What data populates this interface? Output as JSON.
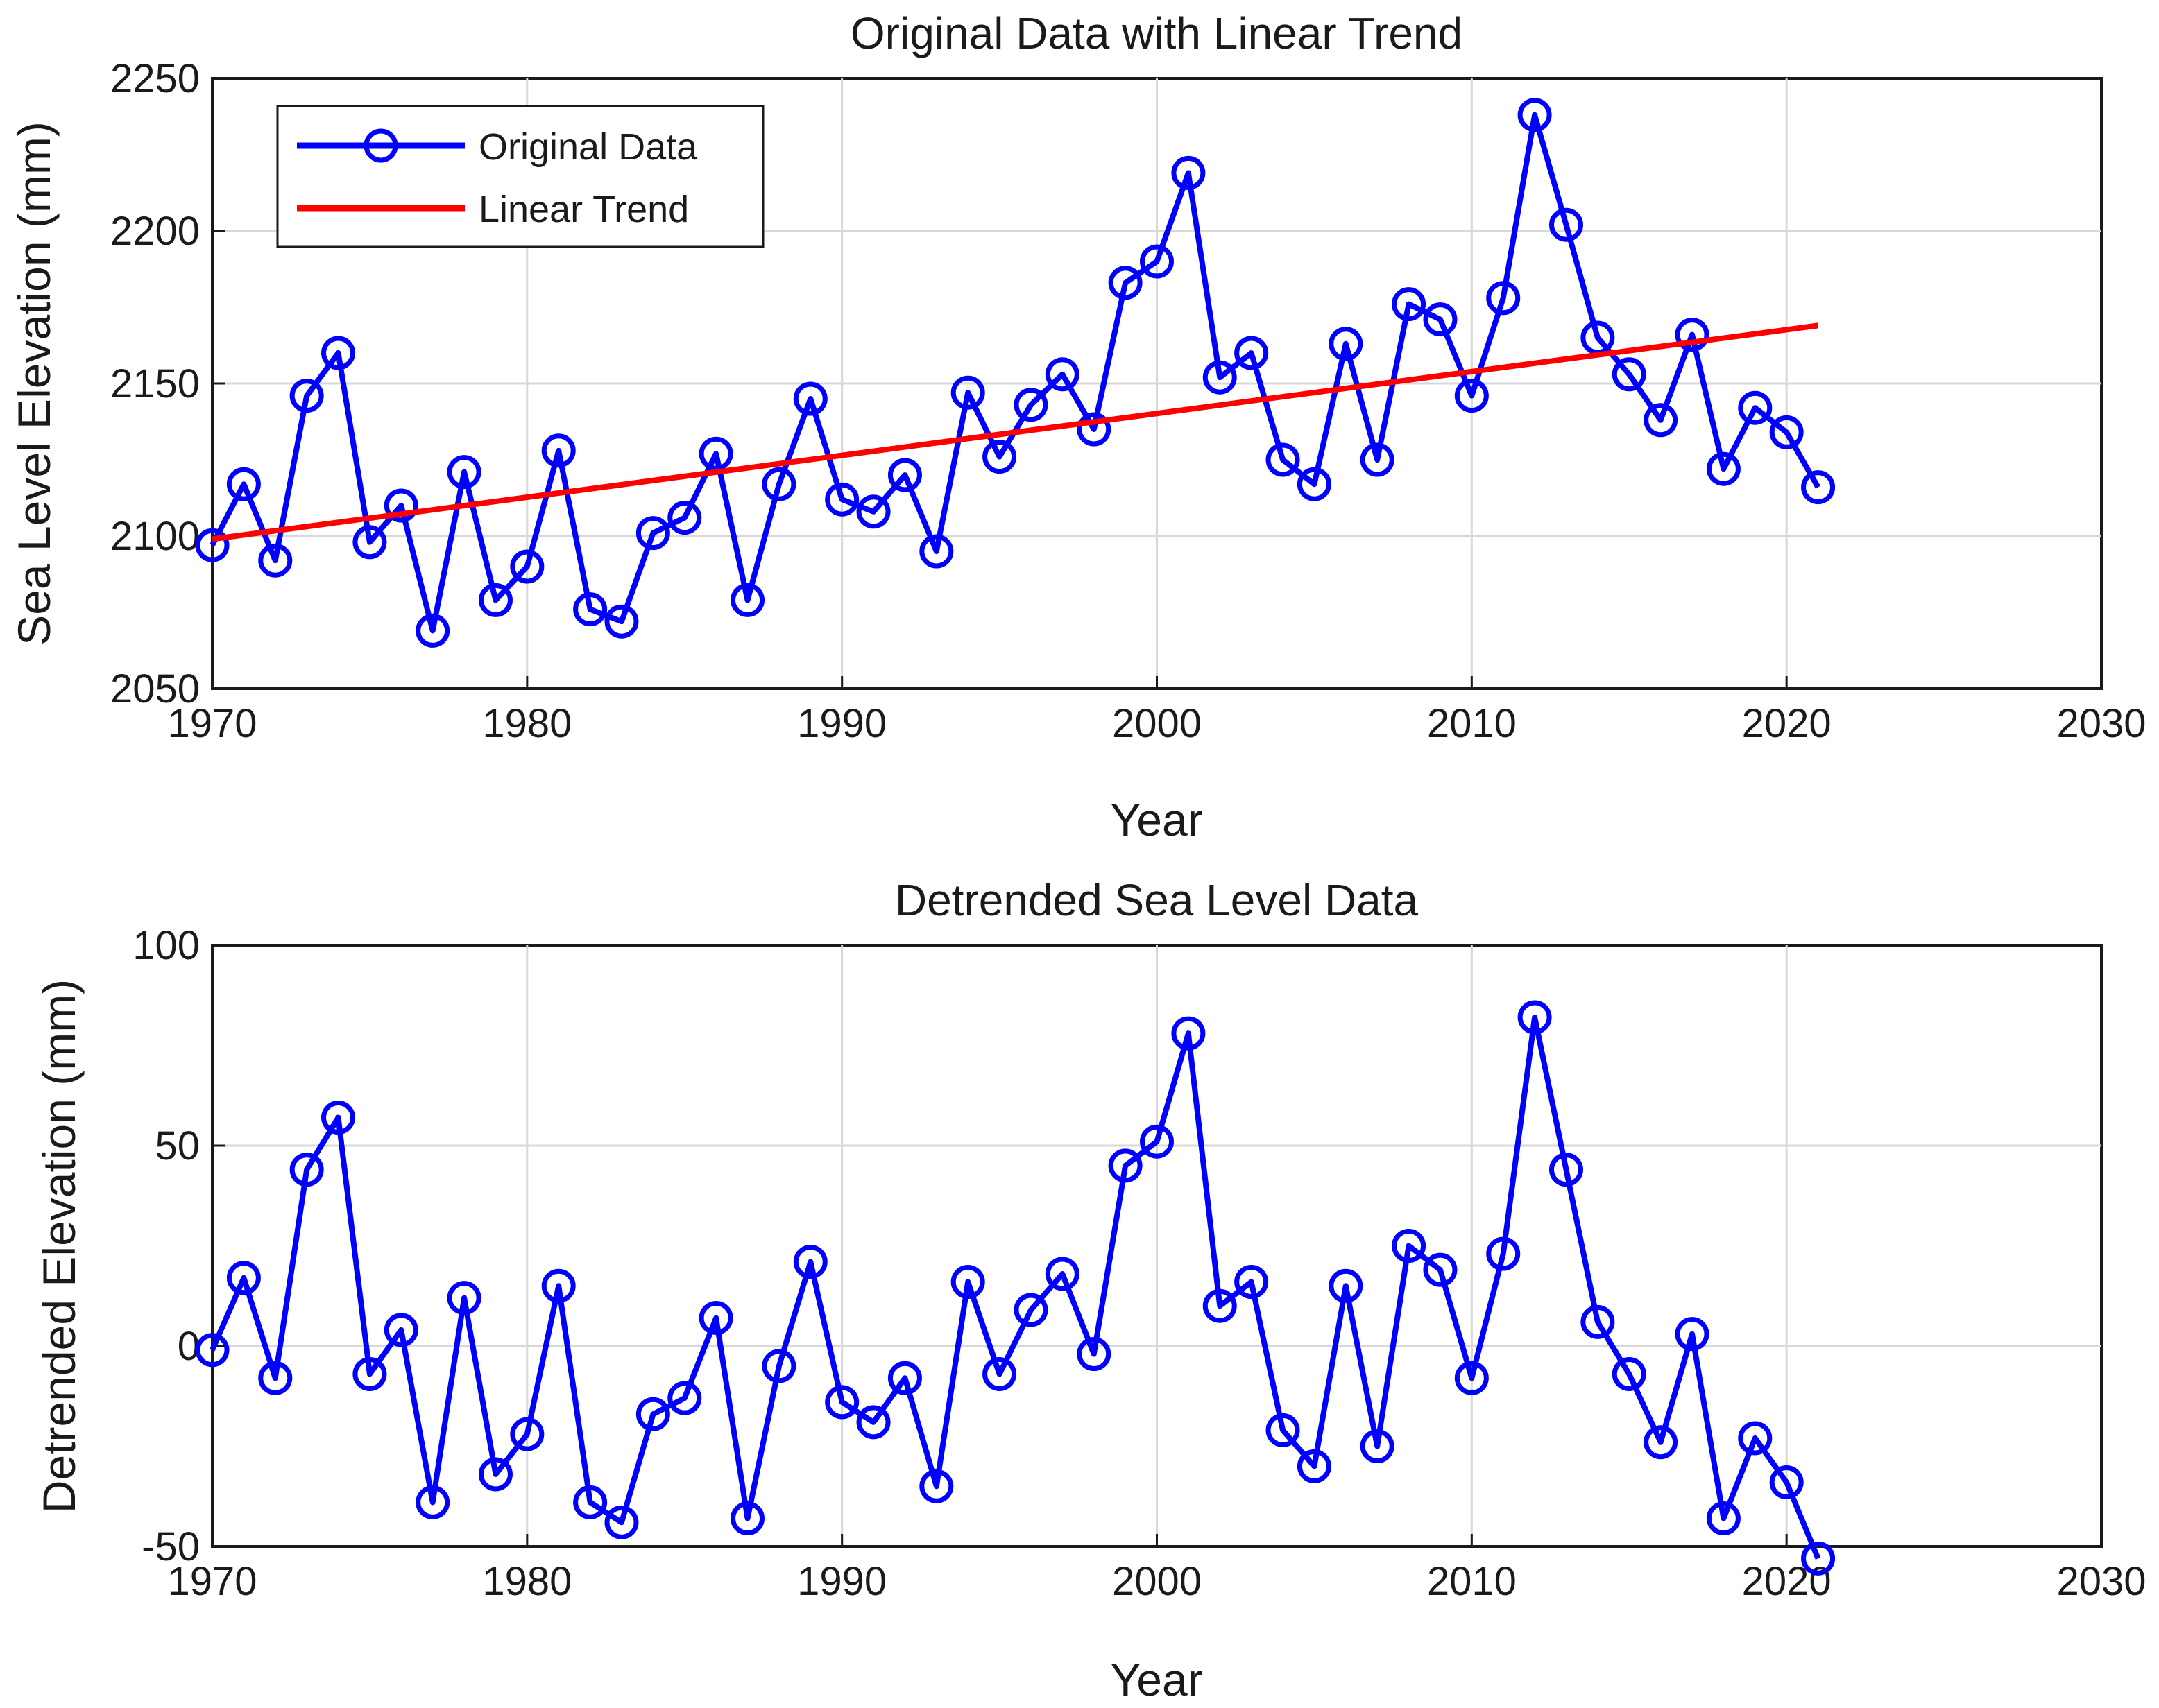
{
  "chart_data": [
    {
      "type": "line",
      "title": "Original Data with Linear Trend",
      "xlabel": "Year",
      "ylabel": "Sea Level Elevation (mm)",
      "xlim": [
        1970,
        2030
      ],
      "ylim": [
        2050,
        2250
      ],
      "xticks": [
        "1970",
        "1980",
        "1990",
        "2000",
        "2010",
        "2020",
        "2030"
      ],
      "yticks": [
        "2050",
        "2100",
        "2150",
        "2200",
        "2250"
      ],
      "grid": true,
      "legend": "top-left",
      "x": [
        1970,
        1971,
        1972,
        1973,
        1974,
        1975,
        1976,
        1977,
        1978,
        1979,
        1980,
        1981,
        1982,
        1983,
        1984,
        1985,
        1986,
        1987,
        1988,
        1989,
        1990,
        1991,
        1992,
        1993,
        1994,
        1995,
        1996,
        1997,
        1998,
        1999,
        2000,
        2001,
        2002,
        2003,
        2004,
        2005,
        2006,
        2007,
        2008,
        2009,
        2010,
        2011,
        2012,
        2013,
        2014,
        2015,
        2016,
        2017,
        2018,
        2019,
        2020,
        2021
      ],
      "series": [
        {
          "name": "Original Data",
          "color": "#0000ff",
          "marker": "circle",
          "values": [
            2097,
            2117,
            2092,
            2146,
            2160,
            2098,
            2110,
            2069,
            2121,
            2079,
            2090,
            2128,
            2076,
            2072,
            2101,
            2106,
            2127,
            2079,
            2117,
            2145,
            2112,
            2108,
            2120,
            2095,
            2147,
            2126,
            2143,
            2153,
            2135,
            2183,
            2190,
            2219,
            2152,
            2160,
            2125,
            2117,
            2163,
            2125,
            2176,
            2171,
            2146,
            2178,
            2238,
            2202,
            2165,
            2153,
            2138,
            2166,
            2122,
            2142,
            2134,
            2116
          ]
        },
        {
          "name": "Linear Trend",
          "color": "#ff0000",
          "marker": "none",
          "x": [
            1970,
            2021
          ],
          "values": [
            2099,
            2169
          ]
        }
      ]
    },
    {
      "type": "line",
      "title": "Detrended Sea Level Data",
      "xlabel": "Year",
      "ylabel": "Detrended Elevation (mm)",
      "xlim": [
        1970,
        2030
      ],
      "ylim": [
        -50,
        100
      ],
      "xticks": [
        "1970",
        "1980",
        "1990",
        "2000",
        "2010",
        "2020",
        "2030"
      ],
      "yticks": [
        "-50",
        "0",
        "50",
        "100"
      ],
      "grid": true,
      "x": [
        1970,
        1971,
        1972,
        1973,
        1974,
        1975,
        1976,
        1977,
        1978,
        1979,
        1980,
        1981,
        1982,
        1983,
        1984,
        1985,
        1986,
        1987,
        1988,
        1989,
        1990,
        1991,
        1992,
        1993,
        1994,
        1995,
        1996,
        1997,
        1998,
        1999,
        2000,
        2001,
        2002,
        2003,
        2004,
        2005,
        2006,
        2007,
        2008,
        2009,
        2010,
        2011,
        2012,
        2013,
        2014,
        2015,
        2016,
        2017,
        2018,
        2019,
        2020,
        2021
      ],
      "series": [
        {
          "name": "Detrended",
          "color": "#0000ff",
          "marker": "circle",
          "values": [
            -1,
            17,
            -8,
            44,
            57,
            -7,
            4,
            -39,
            12,
            -32,
            -22,
            15,
            -39,
            -44,
            -17,
            -13,
            7,
            -43,
            -5,
            21,
            -14,
            -19,
            -8,
            -35,
            16,
            -7,
            9,
            18,
            -2,
            45,
            51,
            78,
            10,
            16,
            -21,
            -30,
            15,
            -25,
            25,
            19,
            -8,
            23,
            82,
            44,
            6,
            -7,
            -24,
            3,
            -43,
            -23,
            -34,
            -53
          ]
        }
      ]
    }
  ]
}
